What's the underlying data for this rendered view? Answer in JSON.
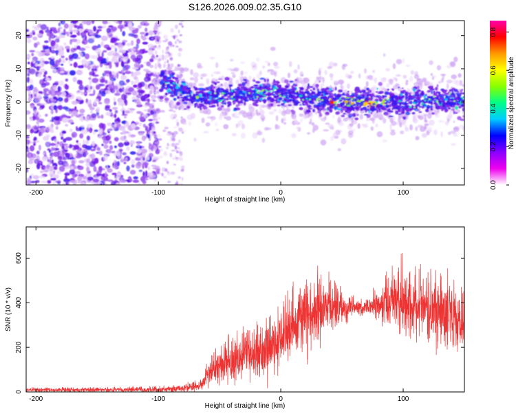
{
  "title": "S126.2026.009.02.35.G10",
  "chart_data": [
    {
      "type": "heatmap",
      "xlabel": "Height of straight line (km)",
      "ylabel": "Frequency (Hz)",
      "xlim": [
        -208,
        150
      ],
      "ylim": [
        -25,
        24.5
      ],
      "xticks": [
        -200,
        -100,
        0,
        100
      ],
      "yticks": [
        -20,
        -10,
        0,
        10,
        20
      ],
      "colorbar": {
        "label": "Normalized spectral amplitude",
        "range": [
          0,
          0.86
        ],
        "ticks": [
          "0.0",
          "0.2",
          "0.4",
          "0.6",
          "0.8"
        ],
        "colors": [
          "#ffffff",
          "#ee00ee",
          "#8800ff",
          "#0000ff",
          "#00ccff",
          "#00ff88",
          "#88ff00",
          "#ffff00",
          "#ff9900",
          "#ff0000",
          "#ff00aa"
        ]
      },
      "ridge_center": [
        [
          -95,
          6
        ],
        [
          -85,
          4
        ],
        [
          -70,
          1
        ],
        [
          -50,
          2
        ],
        [
          -30,
          2
        ],
        [
          -10,
          3
        ],
        [
          0,
          2
        ],
        [
          10,
          2
        ],
        [
          30,
          1
        ],
        [
          45,
          0
        ],
        [
          60,
          0
        ],
        [
          75,
          0
        ],
        [
          90,
          0
        ],
        [
          110,
          0
        ],
        [
          130,
          1
        ],
        [
          150,
          0
        ]
      ]
    },
    {
      "type": "line",
      "xlabel": "Height of straight line (km)",
      "ylabel": "SNR (10 * v/v)",
      "xlim": [
        -208,
        150
      ],
      "ylim": [
        0,
        740
      ],
      "xticks": [
        -200,
        -100,
        0,
        100
      ],
      "yticks": [
        0,
        200,
        400,
        600
      ],
      "color": "#ee3333",
      "envelope": [
        [
          -208,
          20
        ],
        [
          -150,
          20
        ],
        [
          -100,
          25
        ],
        [
          -80,
          35
        ],
        [
          -65,
          60
        ],
        [
          -55,
          200
        ],
        [
          -40,
          250
        ],
        [
          -25,
          300
        ],
        [
          -10,
          340
        ],
        [
          10,
          480
        ],
        [
          25,
          560
        ],
        [
          40,
          520
        ],
        [
          55,
          430
        ],
        [
          70,
          420
        ],
        [
          85,
          520
        ],
        [
          100,
          600
        ],
        [
          120,
          560
        ],
        [
          135,
          540
        ],
        [
          150,
          440
        ]
      ],
      "mean_curve": [
        [
          -208,
          8
        ],
        [
          -150,
          9
        ],
        [
          -100,
          10
        ],
        [
          -80,
          15
        ],
        [
          -65,
          30
        ],
        [
          -55,
          110
        ],
        [
          -40,
          130
        ],
        [
          -25,
          170
        ],
        [
          -10,
          190
        ],
        [
          10,
          300
        ],
        [
          25,
          350
        ],
        [
          40,
          380
        ],
        [
          55,
          370
        ],
        [
          70,
          380
        ],
        [
          85,
          390
        ],
        [
          100,
          400
        ],
        [
          120,
          380
        ],
        [
          135,
          340
        ],
        [
          150,
          300
        ]
      ]
    }
  ]
}
